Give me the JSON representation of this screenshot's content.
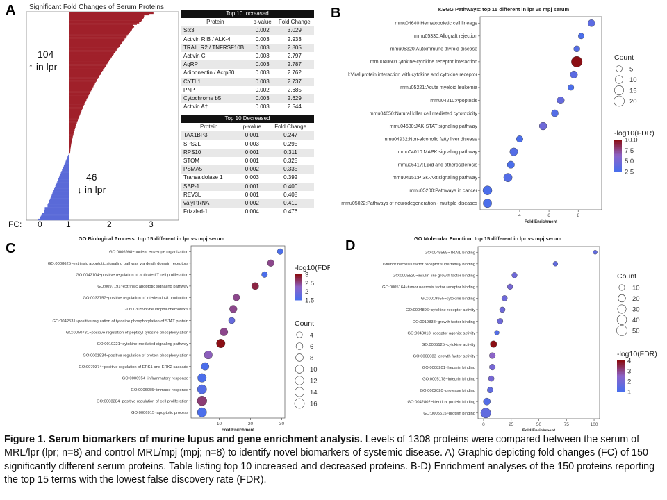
{
  "panelA": {
    "letter": "A",
    "title": "Significant Fold Changes of Serum Proteins",
    "up_count": "104",
    "up_label": "↑ in lpr",
    "down_count": "46",
    "down_label": "↓ in lpr",
    "fc_axis_label": "FC:",
    "fc_ticks": [
      "0",
      "1",
      "2",
      "3"
    ],
    "up_color": "#a0202a",
    "down_color": "#5a6ad8"
  },
  "tables": {
    "increased": {
      "title": "Top 10 Increased",
      "columns": [
        "Protein",
        "p-value",
        "Fold Change"
      ],
      "rows": [
        [
          "Six3",
          "0.002",
          "3.029"
        ],
        [
          "Activin RIB / ALK-4",
          "0.003",
          "2.933"
        ],
        [
          "TRAIL R2 / TNFRSF10B",
          "0.003",
          "2.805"
        ],
        [
          "Activin C",
          "0.003",
          "2.797"
        ],
        [
          "AgRP",
          "0.003",
          "2.787"
        ],
        [
          "Adiponectin / Acrp30",
          "0.003",
          "2.762"
        ],
        [
          "CYTL1",
          "0.003",
          "2.737"
        ],
        [
          "PNP",
          "0.002",
          "2.685"
        ],
        [
          "Cytochrome b5",
          "0.003",
          "2.629"
        ],
        [
          "Activin A†",
          "0.003",
          "2.544"
        ]
      ]
    },
    "decreased": {
      "title": "Top 10 Decreased",
      "columns": [
        "Protein",
        "p-value",
        "Fold Change"
      ],
      "rows": [
        [
          "TAX1BP3",
          "0.001",
          "0.247"
        ],
        [
          "SPS2L",
          "0.003",
          "0.295"
        ],
        [
          "RPS10",
          "0.001",
          "0.311"
        ],
        [
          "STOM",
          "0.001",
          "0.325"
        ],
        [
          "PSMA5",
          "0.002",
          "0.335"
        ],
        [
          "Transaldolase 1",
          "0.003",
          "0.392"
        ],
        [
          "SBP-1",
          "0.001",
          "0.400"
        ],
        [
          "REV3L",
          "0.001",
          "0.408"
        ],
        [
          "valyl tRNA",
          "0.002",
          "0.410"
        ],
        [
          "Frizzled-1",
          "0.004",
          "0.476"
        ]
      ]
    }
  },
  "chart_data": [
    {
      "panel": "B",
      "type": "scatter",
      "title": "KEGG Pathways: top 15 different in lpr vs mpj serum",
      "xlabel": "Fold Enrichment",
      "xlim": [
        1.3,
        9.6
      ],
      "xticks": [
        4,
        6,
        8
      ],
      "categories": [
        "mmu04640:Hematopoietic cell lineage",
        "mmu05330:Allograft rejection",
        "mmu05320:Autoimmune thyroid disease",
        "mmu04060:Cytokine-cytokine receptor interaction",
        "l:Viral protein interaction with cytokine and cytokine receptor",
        "mmu05221:Acute myeloid leukemia",
        "mmu04210:Apoptosis",
        "mmu04650:Natural killer cell mediated cytotoxicity",
        "mmu04630:JAK-STAT signaling pathway",
        "mmu04932:Non-alcoholic fatty liver disease",
        "mmu04010:MAPK signaling pathway",
        "mmu05417:Lipid and atherosclerosis",
        "mmu04151:PI3K-Akt signaling pathway",
        "mmu05200:Pathways in cancer",
        "mmu05022:Pathways of neurodegeneration - multiple diseases"
      ],
      "x": [
        8.9,
        8.2,
        7.9,
        7.9,
        7.7,
        7.5,
        6.8,
        6.4,
        5.6,
        4.0,
        3.6,
        3.4,
        3.2,
        1.8,
        1.8
      ],
      "count": [
        7,
        4,
        5,
        22,
        8,
        4,
        8,
        7,
        9,
        6,
        10,
        8,
        12,
        14,
        12
      ],
      "neglog10_fdr": [
        3.5,
        2.5,
        3.0,
        10.0,
        3.5,
        2.5,
        4.0,
        3.0,
        4.5,
        2.5,
        3.0,
        2.5,
        3.0,
        2.5,
        2.0
      ],
      "size_legend": {
        "title": "Count",
        "values": [
          5,
          10,
          15,
          20
        ]
      },
      "color_legend": {
        "title": "-log10(FDR)",
        "values": [
          10.0,
          7.5,
          5.0,
          2.5
        ]
      }
    },
    {
      "panel": "C",
      "type": "scatter",
      "title": "GO Biological Process: top 15 different in lpr vs mpj serum",
      "xlabel": "Fold Enrichment",
      "xlim": [
        1,
        31
      ],
      "xticks": [
        10,
        20,
        30
      ],
      "categories": [
        "GO:0006998~nuclear envelope organization",
        "GO:0008625~extrinsic apoptotic signaling pathway via death domain receptors",
        "GO:0042104~positive regulation of activated T cell proliferation",
        "GO:0097191~extrinsic apoptotic signaling pathway",
        "GO:0032757~positive regulation of interleukin-8 production",
        "GO:0030593~neutrophil chemotaxis",
        "GO:0042531~positive regulation of tyrosine phosphorylation of STAT protein",
        "GO:0050731~positive regulation of peptidyl-tyrosine phosphorylation",
        "GO:0019221~cytokine-mediated signaling pathway",
        "GO:0001934~positive regulation of protein phosphorylation",
        "GO:0070374~positive regulation of ERK1 and ERK2 cascade",
        "GO:0006954~inflammatory response",
        "GO:0006955~immune response",
        "GO:0008284~positive regulation of cell proliferation",
        "GO:0006915~apoptotic process"
      ],
      "x": [
        29.5,
        26.5,
        24.5,
        21.5,
        15.5,
        14.5,
        14.0,
        11.5,
        10.5,
        6.5,
        5.5,
        4.5,
        4.5,
        4.5,
        4.5
      ],
      "count": [
        4,
        6,
        4,
        7,
        6,
        8,
        5,
        9,
        12,
        10,
        9,
        12,
        14,
        16,
        14
      ],
      "neglog10_fdr": [
        1.5,
        2.5,
        1.5,
        2.8,
        2.5,
        2.5,
        1.8,
        2.5,
        3.0,
        2.3,
        1.5,
        1.5,
        1.6,
        2.6,
        1.0
      ],
      "size_legend": {
        "title": "Count",
        "values": [
          4,
          6,
          8,
          10,
          12,
          14,
          16
        ]
      },
      "color_legend": {
        "title": "-log10(FDR)",
        "values": [
          3.0,
          2.5,
          2.0,
          1.5
        ]
      }
    },
    {
      "panel": "D",
      "type": "scatter",
      "title": "GO Molecular Function: top 15 different in lpr vs mpj serum",
      "xlabel": "Fold Enrichment",
      "xlim": [
        -5,
        105
      ],
      "xticks": [
        0,
        25,
        50,
        75,
        100
      ],
      "categories": [
        "GO:0045569~TRAIL binding",
        "l~tumor necrosis factor receptor superfamily binding",
        "GO:0005520~insulin-like growth factor binding",
        "GO:0005164~tumor necrosis factor receptor binding",
        "GO:0019955~cytokine binding",
        "GO:0004896~cytokine receptor activity",
        "GO:0019838~growth factor binding",
        "GO:0048018~receptor agonist activity",
        "GO:0005125~cytokine activity",
        "GO:0008083~growth factor activity",
        "GO:0008201~heparin binding",
        "GO:0005178~integrin binding",
        "GO:0002020~protease binding",
        "GO:0042802~identical protein binding",
        "GO:0005515~protein binding"
      ],
      "x": [
        101,
        65,
        28,
        24,
        19,
        17,
        15,
        12,
        9,
        8,
        8,
        7,
        6,
        3,
        2
      ],
      "count": [
        3,
        5,
        8,
        8,
        9,
        9,
        9,
        5,
        15,
        11,
        11,
        9,
        10,
        18,
        45
      ],
      "neglog10_fdr": [
        1.5,
        1.5,
        1.8,
        2.0,
        1.8,
        1.8,
        1.8,
        1.2,
        4.5,
        2.5,
        2.0,
        2.0,
        1.5,
        1.2,
        1.5
      ],
      "size_legend": {
        "title": "Count",
        "values": [
          10,
          20,
          30,
          40,
          50
        ]
      },
      "color_legend": {
        "title": "-log10(FDR)",
        "values": [
          4,
          3,
          2,
          1
        ]
      }
    }
  ],
  "caption": {
    "bold": "Figure 1. Serum biomarkers of murine lupus and gene enrichment analysis.",
    "text": " Levels of 1308 proteins were compared between the serum of MRL/lpr (lpr; n=8) and control MRL/mpj (mpj; n=8) to identify novel biomarkers of systemic disease. A) Graphic depicting fold changes (FC) of 150 significantly different serum proteins. Table listing top 10 increased and decreased proteins. B-D) Enrichment analyses of the 150 proteins reporting the top 15 terms with the lowest false discovery rate (FDR)."
  }
}
